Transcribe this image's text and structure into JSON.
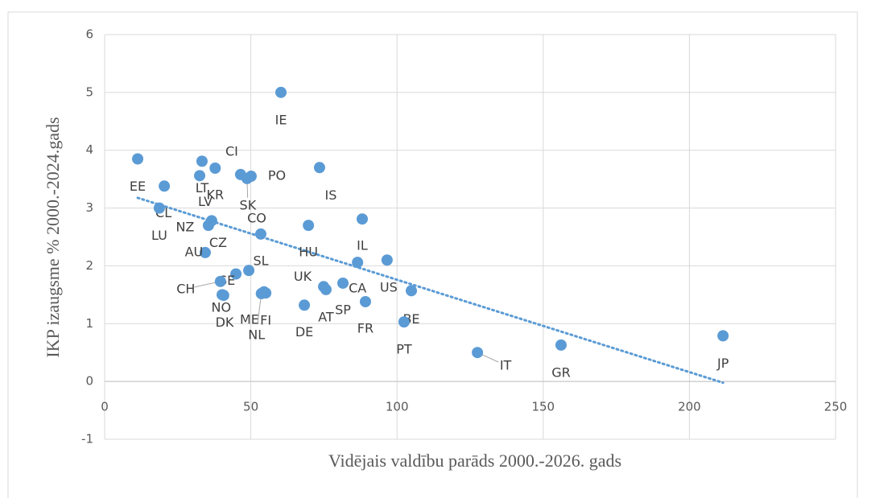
{
  "chart_data": {
    "type": "scatter",
    "xlabel": "Vidējais valdību parāds 2000.-2026. gads",
    "ylabel": "IKP izaugsme % 2000.-2024.gads",
    "labels": [
      "EE",
      "CL",
      "LT",
      "LV",
      "KR",
      "CI",
      "SK",
      "PO",
      "IS",
      "IE",
      "HU",
      "IL",
      "CO",
      "CZ",
      "NZ",
      "AU",
      "SE",
      "SL",
      "CH",
      "NO",
      "FI",
      "CA",
      "US",
      "UK",
      "AT",
      "SP",
      "BE",
      "FR",
      "DE",
      "PT",
      "IT",
      "GR",
      "JP",
      "LU",
      "DK",
      "ME",
      "NL"
    ],
    "x": [
      11.3,
      20.4,
      33.3,
      32.5,
      37.8,
      46.5,
      48.7,
      50.1,
      73.5,
      60.3,
      69.7,
      88.1,
      53.4,
      36.6,
      35.5,
      34.4,
      44.9,
      49.3,
      39.6,
      40.7,
      55.1,
      86.5,
      96.6,
      74.9,
      75.7,
      81.5,
      104.9,
      89.2,
      68.3,
      102.4,
      127.5,
      156.1,
      211.5,
      18.7,
      40.2,
      54.5,
      53.6
    ],
    "y": [
      3.85,
      3.38,
      3.81,
      3.56,
      3.69,
      3.58,
      3.51,
      3.55,
      3.7,
      5.0,
      2.7,
      2.81,
      2.55,
      2.78,
      2.7,
      2.23,
      1.86,
      1.92,
      1.73,
      1.49,
      1.53,
      2.06,
      2.1,
      1.64,
      1.59,
      1.7,
      1.57,
      1.38,
      1.32,
      1.03,
      0.5,
      0.63,
      0.79,
      3.0,
      1.5,
      1.55,
      1.52
    ],
    "color": "#5b9bd5",
    "trendline": true,
    "xlim": [
      0,
      250
    ],
    "xticks": [
      0,
      50,
      100,
      150,
      200,
      250
    ],
    "ylim": [
      -1,
      6
    ],
    "yticks": [
      -1,
      0,
      1,
      2,
      3,
      4,
      5,
      6
    ],
    "grid": true
  }
}
